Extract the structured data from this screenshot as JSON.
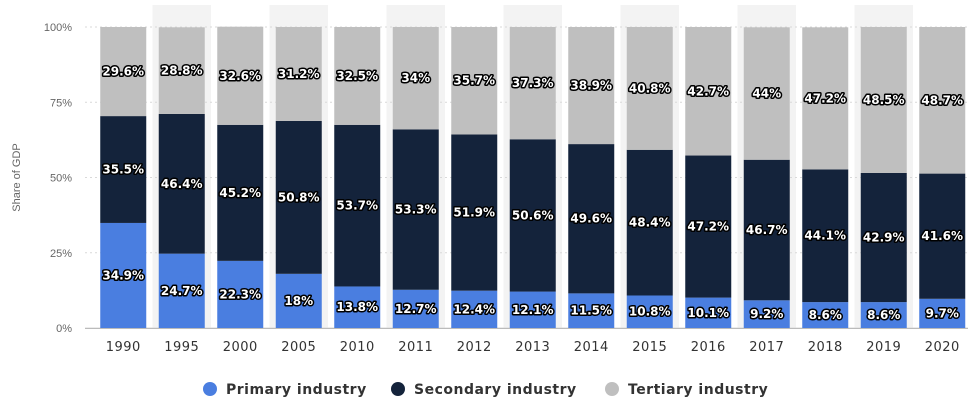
{
  "chart_data": {
    "type": "bar",
    "stacked": true,
    "percent_stacked": true,
    "ylabel": "Share of GDP",
    "ylim": [
      0,
      100
    ],
    "yticks": [
      "0%",
      "25%",
      "50%",
      "75%",
      "100%"
    ],
    "categories": [
      "1990",
      "1995",
      "2000",
      "2005",
      "2010",
      "2011",
      "2012",
      "2013",
      "2014",
      "2015",
      "2016",
      "2017",
      "2018",
      "2019",
      "2020"
    ],
    "series": [
      {
        "name": "Primary industry",
        "color": "#4a7ee0",
        "values": [
          34.9,
          24.7,
          22.3,
          18,
          13.8,
          12.7,
          12.4,
          12.1,
          11.5,
          10.8,
          10.1,
          9.2,
          8.6,
          8.6,
          9.7
        ],
        "labels": [
          "34.9%",
          "24.7%",
          "22.3%",
          "18%",
          "13.8%",
          "12.7%",
          "12.4%",
          "12.1%",
          "11.5%",
          "10.8%",
          "10.1%",
          "9.2%",
          "8.6%",
          "8.6%",
          "9.7%"
        ]
      },
      {
        "name": "Secondary industry",
        "color": "#14233b",
        "values": [
          35.5,
          46.4,
          45.2,
          50.8,
          53.7,
          53.3,
          51.9,
          50.6,
          49.6,
          48.4,
          47.2,
          46.7,
          44.1,
          42.9,
          41.6
        ],
        "labels": [
          "35.5%",
          "46.4%",
          "45.2%",
          "50.8%",
          "53.7%",
          "53.3%",
          "51.9%",
          "50.6%",
          "49.6%",
          "48.4%",
          "47.2%",
          "46.7%",
          "44.1%",
          "42.9%",
          "41.6%"
        ]
      },
      {
        "name": "Tertiary industry",
        "color": "#bfbfbf",
        "values": [
          29.6,
          28.8,
          32.6,
          31.2,
          32.5,
          34,
          35.7,
          37.3,
          38.9,
          40.8,
          42.7,
          44,
          47.2,
          48.5,
          48.7
        ],
        "labels": [
          "29.6%",
          "28.8%",
          "32.6%",
          "31.2%",
          "32.5%",
          "34%",
          "35.7%",
          "37.3%",
          "38.9%",
          "40.8%",
          "42.7%",
          "44%",
          "47.2%",
          "48.5%",
          "48.7%"
        ]
      }
    ],
    "grid": true,
    "alternating_column_bands": true,
    "legend_position": "bottom-center"
  }
}
